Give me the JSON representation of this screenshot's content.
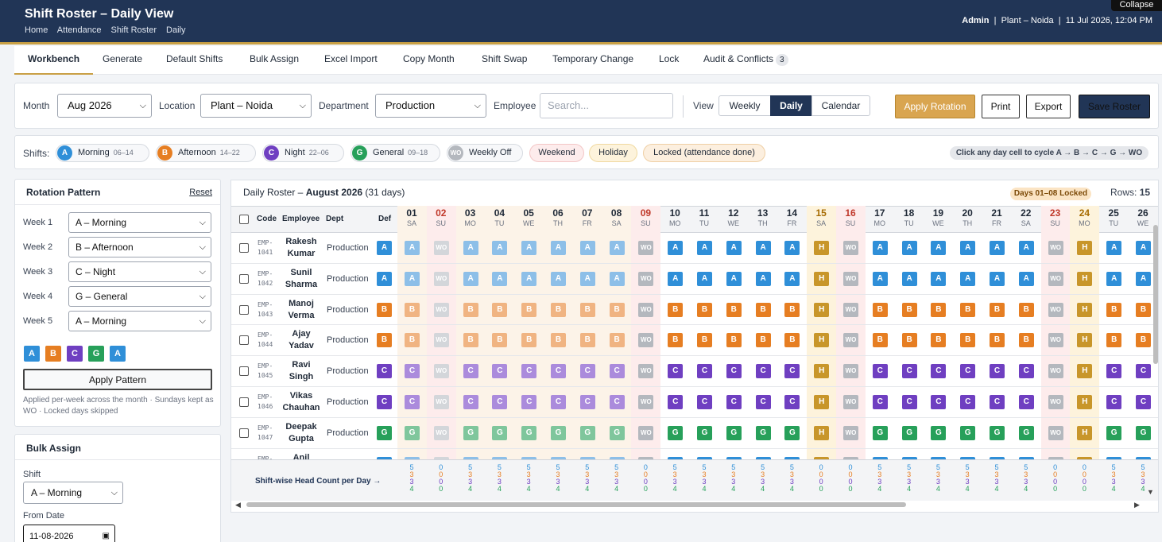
{
  "header": {
    "title": "Shift Roster – Daily View",
    "breadcrumb": [
      "Home",
      "Attendance",
      "Shift Roster",
      "Daily"
    ],
    "user": "Admin",
    "plant": "Plant – Noida",
    "datetime": "11 Jul 2026, 12:04 PM",
    "collapse": "Collapse"
  },
  "tabs": [
    {
      "label": "Workbench",
      "active": true
    },
    {
      "label": "Generate"
    },
    {
      "label": "Default Shifts"
    },
    {
      "label": "Bulk Assign"
    },
    {
      "label": "Excel Import"
    },
    {
      "label": "Copy Month"
    },
    {
      "label": "Shift Swap"
    },
    {
      "label": "Temporary Change"
    },
    {
      "label": "Lock"
    },
    {
      "label": "Audit & Conflicts",
      "badge": "3"
    }
  ],
  "filters": {
    "month_label": "Month",
    "month_value": "Aug 2026",
    "location_label": "Location",
    "location_value": "Plant – Noida",
    "department_label": "Department",
    "department_value": "Production",
    "employee_label": "Employee",
    "employee_placeholder": "Search...",
    "view_label": "View",
    "view_options": [
      "Weekly",
      "Daily",
      "Calendar"
    ],
    "view_selected": "Daily",
    "apply_rotation": "Apply Rotation",
    "print": "Print",
    "export": "Export",
    "save_roster": "Save Roster"
  },
  "legend": {
    "label": "Shifts:",
    "shifts": [
      {
        "code": "A",
        "name": "Morning",
        "time": "06–14",
        "color": "#2f8fd8"
      },
      {
        "code": "B",
        "name": "Afternoon",
        "time": "14–22",
        "color": "#e67e22"
      },
      {
        "code": "C",
        "name": "Night",
        "time": "22–06",
        "color": "#6f3fc1"
      },
      {
        "code": "G",
        "name": "General",
        "time": "09–18",
        "color": "#27a05a"
      },
      {
        "code": "WO",
        "name": "Weekly Off",
        "time": "",
        "color": "#b4b8be"
      }
    ],
    "pills": [
      "Weekend",
      "Holiday",
      "Locked (attendance done)"
    ],
    "hint": "Click any day cell to cycle A → B → C → G → WO"
  },
  "rotation": {
    "title": "Rotation Pattern",
    "reset": "Reset",
    "weeks": [
      {
        "label": "Week 1",
        "value": "A – Morning"
      },
      {
        "label": "Week 2",
        "value": "B – Afternoon"
      },
      {
        "label": "Week 3",
        "value": "C – Night"
      },
      {
        "label": "Week 4",
        "value": "G – General"
      },
      {
        "label": "Week 5",
        "value": "A – Morning"
      }
    ],
    "preview": [
      "A",
      "B",
      "C",
      "G",
      "A"
    ],
    "apply": "Apply Pattern",
    "note": "Applied per-week across the month · Sundays kept as WO · Locked days skipped"
  },
  "bulk": {
    "title": "Bulk Assign",
    "shift_label": "Shift",
    "shift_value": "A – Morning",
    "from_label": "From Date",
    "from_value": "11-08-2026"
  },
  "roster": {
    "title_prefix": "Daily Roster – ",
    "month": "August 2026",
    "days_note": "(31 days)",
    "locked_badge": "Days 01–08 Locked",
    "rows_label": "Rows:",
    "rows_count": "15",
    "col_code": "Code",
    "col_employee": "Employee",
    "col_dept": "Dept",
    "col_def": "Def",
    "headcount_label": "Shift-wise Head Count per Day →",
    "days": [
      {
        "d": "01",
        "w": "SA"
      },
      {
        "d": "02",
        "w": "SU"
      },
      {
        "d": "03",
        "w": "MO"
      },
      {
        "d": "04",
        "w": "TU"
      },
      {
        "d": "05",
        "w": "WE"
      },
      {
        "d": "06",
        "w": "TH"
      },
      {
        "d": "07",
        "w": "FR"
      },
      {
        "d": "08",
        "w": "SA"
      },
      {
        "d": "09",
        "w": "SU"
      },
      {
        "d": "10",
        "w": "MO"
      },
      {
        "d": "11",
        "w": "TU"
      },
      {
        "d": "12",
        "w": "WE"
      },
      {
        "d": "13",
        "w": "TH"
      },
      {
        "d": "14",
        "w": "FR"
      },
      {
        "d": "15",
        "w": "SA"
      },
      {
        "d": "16",
        "w": "SU"
      },
      {
        "d": "17",
        "w": "MO"
      },
      {
        "d": "18",
        "w": "TU"
      },
      {
        "d": "19",
        "w": "WE"
      },
      {
        "d": "20",
        "w": "TH"
      },
      {
        "d": "21",
        "w": "FR"
      },
      {
        "d": "22",
        "w": "SA"
      },
      {
        "d": "23",
        "w": "SU"
      },
      {
        "d": "24",
        "w": "MO"
      },
      {
        "d": "25",
        "w": "TU"
      },
      {
        "d": "26",
        "w": "WE"
      }
    ],
    "employees": [
      {
        "code": "EMP-1041",
        "first": "Rakesh",
        "last": "Kumar",
        "dept": "Production",
        "def": "A"
      },
      {
        "code": "EMP-1042",
        "first": "Sunil",
        "last": "Sharma",
        "dept": "Production",
        "def": "A"
      },
      {
        "code": "EMP-1043",
        "first": "Manoj",
        "last": "Verma",
        "dept": "Production",
        "def": "B"
      },
      {
        "code": "EMP-1044",
        "first": "Ajay",
        "last": "Yadav",
        "dept": "Production",
        "def": "B"
      },
      {
        "code": "EMP-1045",
        "first": "Ravi",
        "last": "Singh",
        "dept": "Production",
        "def": "C"
      },
      {
        "code": "EMP-1046",
        "first": "Vikas",
        "last": "Chauhan",
        "dept": "Production",
        "def": "C"
      },
      {
        "code": "EMP-1047",
        "first": "Deepak",
        "last": "Gupta",
        "dept": "Production",
        "def": "G"
      },
      {
        "code": "EMP-",
        "first": "Anil",
        "last": "",
        "dept": "",
        "def": ""
      }
    ],
    "headcounts": [
      [
        "5",
        "3",
        "3",
        "4"
      ],
      [
        "0",
        "0",
        "0",
        "0"
      ],
      [
        "5",
        "3",
        "3",
        "4"
      ],
      [
        "5",
        "3",
        "3",
        "4"
      ],
      [
        "5",
        "3",
        "3",
        "4"
      ],
      [
        "5",
        "3",
        "3",
        "4"
      ],
      [
        "5",
        "3",
        "3",
        "4"
      ],
      [
        "5",
        "3",
        "3",
        "4"
      ],
      [
        "0",
        "0",
        "0",
        "0"
      ],
      [
        "5",
        "3",
        "3",
        "4"
      ],
      [
        "5",
        "3",
        "3",
        "4"
      ],
      [
        "5",
        "3",
        "3",
        "4"
      ],
      [
        "5",
        "3",
        "3",
        "4"
      ],
      [
        "5",
        "3",
        "3",
        "4"
      ],
      [
        "0",
        "0",
        "0",
        "0"
      ],
      [
        "0",
        "0",
        "0",
        "0"
      ],
      [
        "5",
        "3",
        "3",
        "4"
      ],
      [
        "5",
        "3",
        "3",
        "4"
      ],
      [
        "5",
        "3",
        "3",
        "4"
      ],
      [
        "5",
        "3",
        "3",
        "4"
      ],
      [
        "5",
        "3",
        "3",
        "4"
      ],
      [
        "5",
        "3",
        "3",
        "4"
      ],
      [
        "0",
        "0",
        "0",
        "0"
      ],
      [
        "0",
        "0",
        "0",
        "0"
      ],
      [
        "5",
        "3",
        "3",
        "4"
      ],
      [
        "5",
        "3",
        "3",
        "4"
      ]
    ]
  },
  "colors": {
    "A": "#2f8fd8",
    "B": "#e67e22",
    "C": "#6f3fc1",
    "G": "#27a05a",
    "WO": "#b4b8be",
    "H": "#c8962a",
    "header": "#213556",
    "accent": "#c9a045"
  }
}
